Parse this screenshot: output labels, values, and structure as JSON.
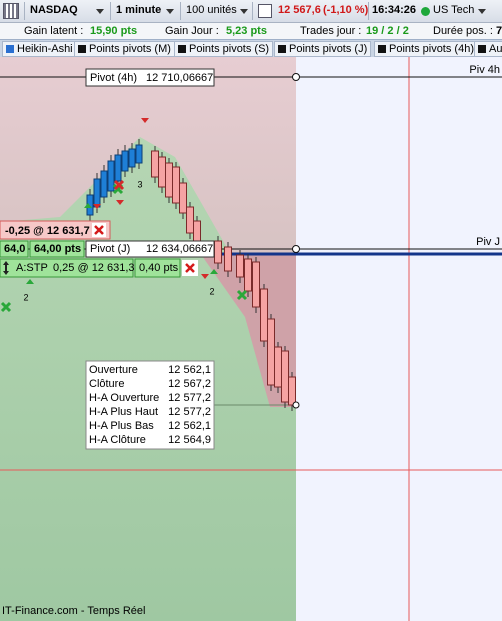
{
  "toolbar": {
    "instrument": "NASDAQ",
    "timeframe": "1 minute",
    "quantity": "100 unités",
    "price": "12 567,6",
    "change": "(-1,10 %)",
    "time": "16:34:26",
    "status": "US Tech"
  },
  "stats": {
    "unrealized_label": "Gain latent :",
    "unrealized": "15,90 pts",
    "day_label": "Gain Jour :",
    "day": "5,23 pts",
    "trades_label": "Trades jour :",
    "trades": "19 / 2 / 2",
    "duration_label": "Durée pos. :",
    "duration": "7"
  },
  "tabs": [
    "Heikin-Ashi",
    "Points pivots (M)",
    "Points pivots (S)",
    "Points pivots (J)",
    "Points pivots (4h)",
    "Autre"
  ],
  "chart": {
    "pivot_4h": {
      "label": "Pivot (4h)",
      "value": "12 710,06667",
      "tag": "Piv 4h"
    },
    "pivot_j": {
      "label": "Pivot (J)",
      "value": "12 634,06667",
      "tag": "Piv J"
    },
    "orders": {
      "pending": "-0,25 @ 12 631,7",
      "qty": "64,0",
      "distance": "64,00 pts",
      "stop_type": "A:STP",
      "stop": "0,25 @ 12 631,3",
      "stop_distance": "0,40 pts"
    },
    "markers": [
      "3",
      "2",
      "2"
    ],
    "tooltip": [
      [
        "Ouverture",
        "12 562,1"
      ],
      [
        "Clôture",
        "12 567,2"
      ],
      [
        "H-A Ouverture",
        "12 577,2"
      ],
      [
        "H-A Plus Haut",
        "12 577,2"
      ],
      [
        "H-A Plus Bas",
        "12 562,1"
      ],
      [
        "H-A Clôture",
        "12 564,9"
      ]
    ],
    "footer": "IT-Finance.com - Temps Réel"
  }
}
